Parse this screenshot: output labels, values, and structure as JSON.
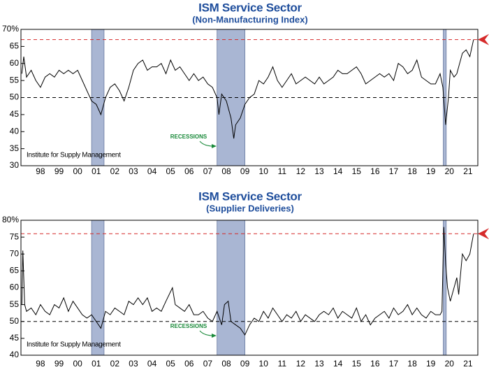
{
  "chart_data": [
    {
      "type": "line",
      "title": "ISM Service Sector",
      "subtitle": "(Non-Manufacturing Index)",
      "source": "Institute for Supply Management",
      "annotation": "RECESSIONS",
      "xlim": [
        1997.45,
        2022.03
      ],
      "ylim": [
        30,
        70
      ],
      "yticks": [
        30,
        35,
        40,
        45,
        50,
        55,
        60,
        65,
        {
          "value": 70,
          "label": "70%"
        }
      ],
      "xticks": [
        {
          "value": 1998.5,
          "label": "98"
        },
        {
          "value": 1999.5,
          "label": "99"
        },
        {
          "value": 2000.5,
          "label": "00"
        },
        {
          "value": 2001.5,
          "label": "01"
        },
        {
          "value": 2002.5,
          "label": "02"
        },
        {
          "value": 2003.5,
          "label": "03"
        },
        {
          "value": 2004.5,
          "label": "04"
        },
        {
          "value": 2005.5,
          "label": "05"
        },
        {
          "value": 2006.5,
          "label": "06"
        },
        {
          "value": 2007.5,
          "label": "07"
        },
        {
          "value": 2008.5,
          "label": "08"
        },
        {
          "value": 2009.5,
          "label": "09"
        },
        {
          "value": 2010.5,
          "label": "10"
        },
        {
          "value": 2011.5,
          "label": "11"
        },
        {
          "value": 2012.5,
          "label": "12"
        },
        {
          "value": 2013.5,
          "label": "13"
        },
        {
          "value": 2014.5,
          "label": "14"
        },
        {
          "value": 2015.5,
          "label": "15"
        },
        {
          "value": 2016.5,
          "label": "16"
        },
        {
          "value": 2017.5,
          "label": "17"
        },
        {
          "value": 2018.5,
          "label": "18"
        },
        {
          "value": 2019.5,
          "label": "19"
        },
        {
          "value": 2020.5,
          "label": "20"
        },
        {
          "value": 2021.5,
          "label": "21"
        }
      ],
      "recessions": [
        [
          2001.25,
          2001.92
        ],
        [
          2008.0,
          2009.5
        ],
        [
          2020.17,
          2020.33
        ]
      ],
      "recession_color": "#a9b6d3",
      "reference_lines": [
        {
          "value": 50,
          "color": "#000000"
        },
        {
          "value": 67,
          "color": "#d62a2a"
        }
      ],
      "color": "#000000",
      "x": [
        1997.5,
        1997.6,
        1997.75,
        1998.0,
        1998.25,
        1998.5,
        1998.75,
        1999.0,
        1999.25,
        1999.5,
        1999.75,
        2000.0,
        2000.25,
        2000.5,
        2000.75,
        2001.0,
        2001.25,
        2001.5,
        2001.75,
        2002.0,
        2002.25,
        2002.5,
        2002.75,
        2003.0,
        2003.25,
        2003.5,
        2003.75,
        2004.0,
        2004.25,
        2004.5,
        2004.75,
        2005.0,
        2005.25,
        2005.5,
        2005.75,
        2006.0,
        2006.25,
        2006.5,
        2006.75,
        2007.0,
        2007.25,
        2007.5,
        2007.75,
        2008.0,
        2008.1,
        2008.25,
        2008.5,
        2008.75,
        2008.9,
        2009.0,
        2009.25,
        2009.5,
        2009.75,
        2010.0,
        2010.25,
        2010.5,
        2010.75,
        2011.0,
        2011.25,
        2011.5,
        2011.75,
        2012.0,
        2012.25,
        2012.5,
        2012.75,
        2013.0,
        2013.25,
        2013.5,
        2013.75,
        2014.0,
        2014.25,
        2014.5,
        2014.75,
        2015.0,
        2015.25,
        2015.5,
        2015.75,
        2016.0,
        2016.25,
        2016.5,
        2016.75,
        2017.0,
        2017.25,
        2017.5,
        2017.75,
        2018.0,
        2018.25,
        2018.5,
        2018.75,
        2019.0,
        2019.25,
        2019.5,
        2019.75,
        2020.0,
        2020.15,
        2020.3,
        2020.45,
        2020.55,
        2020.75,
        2020.9,
        2021.0,
        2021.2,
        2021.4,
        2021.6,
        2021.8
      ],
      "values": [
        57,
        62,
        56,
        58,
        55,
        53,
        56,
        57,
        56,
        58,
        57,
        58,
        57,
        58,
        55,
        52,
        49,
        48,
        45,
        50,
        53,
        54,
        52,
        49,
        53,
        58,
        60,
        61,
        58,
        59,
        59,
        60,
        57,
        61,
        58,
        59,
        57,
        55,
        57,
        55,
        56,
        54,
        53,
        50,
        45,
        51,
        49,
        44,
        38,
        42,
        44,
        48,
        50,
        51,
        55,
        54,
        56,
        59,
        55,
        53,
        55,
        57,
        54,
        55,
        56,
        55,
        54,
        56,
        54,
        55,
        56,
        58,
        57,
        57,
        58,
        59,
        57,
        54,
        55,
        56,
        57,
        56,
        57,
        55,
        60,
        59,
        57,
        58,
        61,
        56,
        55,
        54,
        54,
        57,
        53,
        42,
        50,
        58,
        56,
        57,
        59,
        63,
        64,
        62,
        67
      ]
    },
    {
      "type": "line",
      "title": "ISM Service Sector",
      "subtitle": "(Supplier Deliveries)",
      "source": "Institute for Supply Management",
      "annotation": "RECESSIONS",
      "xlim": [
        1997.45,
        2022.03
      ],
      "ylim": [
        40,
        80
      ],
      "yticks": [
        40,
        45,
        50,
        55,
        60,
        65,
        70,
        75,
        {
          "value": 80,
          "label": "80%"
        }
      ],
      "xticks": [
        {
          "value": 1998.5,
          "label": "98"
        },
        {
          "value": 1999.5,
          "label": "99"
        },
        {
          "value": 2000.5,
          "label": "00"
        },
        {
          "value": 2001.5,
          "label": "01"
        },
        {
          "value": 2002.5,
          "label": "02"
        },
        {
          "value": 2003.5,
          "label": "03"
        },
        {
          "value": 2004.5,
          "label": "04"
        },
        {
          "value": 2005.5,
          "label": "05"
        },
        {
          "value": 2006.5,
          "label": "06"
        },
        {
          "value": 2007.5,
          "label": "07"
        },
        {
          "value": 2008.5,
          "label": "08"
        },
        {
          "value": 2009.5,
          "label": "09"
        },
        {
          "value": 2010.5,
          "label": "10"
        },
        {
          "value": 2011.5,
          "label": "11"
        },
        {
          "value": 2012.5,
          "label": "12"
        },
        {
          "value": 2013.5,
          "label": "13"
        },
        {
          "value": 2014.5,
          "label": "14"
        },
        {
          "value": 2015.5,
          "label": "15"
        },
        {
          "value": 2016.5,
          "label": "16"
        },
        {
          "value": 2017.5,
          "label": "17"
        },
        {
          "value": 2018.5,
          "label": "18"
        },
        {
          "value": 2019.5,
          "label": "19"
        },
        {
          "value": 2020.5,
          "label": "20"
        },
        {
          "value": 2021.5,
          "label": "21"
        }
      ],
      "recessions": [
        [
          2001.25,
          2001.92
        ],
        [
          2008.0,
          2009.5
        ],
        [
          2020.17,
          2020.33
        ]
      ],
      "recession_color": "#a9b6d3",
      "reference_lines": [
        {
          "value": 50,
          "color": "#000000"
        },
        {
          "value": 76,
          "color": "#d62a2a"
        }
      ],
      "color": "#000000",
      "x": [
        1997.5,
        1997.55,
        1997.65,
        1997.75,
        1998.0,
        1998.25,
        1998.5,
        1998.75,
        1999.0,
        1999.25,
        1999.5,
        1999.75,
        2000.0,
        2000.25,
        2000.5,
        2000.75,
        2001.0,
        2001.25,
        2001.5,
        2001.75,
        2002.0,
        2002.25,
        2002.5,
        2002.75,
        2003.0,
        2003.25,
        2003.5,
        2003.75,
        2004.0,
        2004.25,
        2004.5,
        2004.75,
        2005.0,
        2005.25,
        2005.6,
        2005.75,
        2006.0,
        2006.25,
        2006.5,
        2006.75,
        2007.0,
        2007.25,
        2007.5,
        2007.75,
        2008.0,
        2008.25,
        2008.4,
        2008.6,
        2008.75,
        2009.0,
        2009.25,
        2009.5,
        2009.75,
        2010.0,
        2010.25,
        2010.5,
        2010.75,
        2011.0,
        2011.25,
        2011.5,
        2011.75,
        2012.0,
        2012.25,
        2012.5,
        2012.75,
        2013.0,
        2013.25,
        2013.5,
        2013.75,
        2014.0,
        2014.25,
        2014.5,
        2014.75,
        2015.0,
        2015.25,
        2015.5,
        2015.75,
        2016.0,
        2016.25,
        2016.5,
        2016.75,
        2017.0,
        2017.25,
        2017.5,
        2017.75,
        2018.0,
        2018.25,
        2018.5,
        2018.75,
        2019.0,
        2019.25,
        2019.5,
        2019.75,
        2020.0,
        2020.1,
        2020.2,
        2020.3,
        2020.4,
        2020.55,
        2020.75,
        2020.9,
        2021.0,
        2021.2,
        2021.4,
        2021.6,
        2021.8
      ],
      "values": [
        55,
        71,
        55,
        53,
        54,
        52,
        55,
        53,
        52,
        55,
        54,
        57,
        53,
        56,
        54,
        52,
        51,
        52,
        50,
        48,
        53,
        52,
        54,
        53,
        52,
        56,
        55,
        57,
        55,
        57,
        53,
        54,
        53,
        56,
        60,
        55,
        54,
        53,
        55,
        52,
        52,
        53,
        51,
        50,
        53,
        49,
        55,
        56,
        50,
        49,
        48,
        46,
        49,
        51,
        50,
        53,
        51,
        54,
        52,
        50,
        52,
        51,
        53,
        50,
        52,
        51,
        50,
        52,
        53,
        52,
        54,
        51,
        53,
        52,
        51,
        54,
        50,
        52,
        49,
        51,
        52,
        53,
        51,
        54,
        52,
        53,
        55,
        52,
        54,
        52,
        51,
        53,
        52,
        52,
        53,
        78,
        67,
        60,
        56,
        60,
        63,
        58,
        70,
        68,
        70,
        76
      ]
    }
  ]
}
